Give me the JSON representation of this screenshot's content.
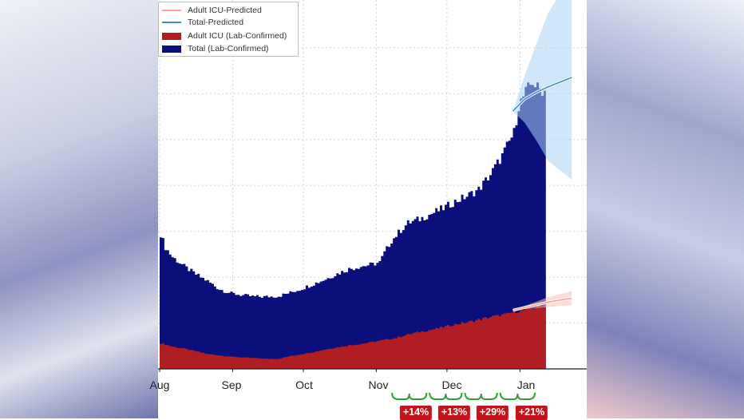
{
  "chart_data": {
    "type": "area",
    "ylabel": "",
    "xlabel": "",
    "x_start": "Aug 31",
    "x_end": "Jan 11",
    "grid": true,
    "legend_position": "top-left",
    "legend": [
      {
        "label": "Adult ICU-Predicted",
        "kind": "line",
        "color": "#f4a29a"
      },
      {
        "label": "Total-Predicted",
        "kind": "line",
        "color": "#3b8fd9"
      },
      {
        "label": "Adult ICU (Lab-Confirmed)",
        "kind": "box",
        "color": "#b01e23"
      },
      {
        "label": "Total (Lab-Confirmed)",
        "kind": "box",
        "color": "#0b0f7c"
      }
    ],
    "x_tick_labels": [
      {
        "label": "Aug",
        "day": 0
      },
      {
        "label": "Sep",
        "day": 31
      },
      {
        "label": "Oct",
        "day": 61
      },
      {
        "label": "Nov",
        "day": 92
      },
      {
        "label": "Dec",
        "day": 122
      },
      {
        "label": "Jan",
        "day": 153
      }
    ],
    "series": [
      {
        "name": "Total (Lab-Confirmed)",
        "type": "area",
        "color": "#0b0f7c",
        "points": [
          [
            0,
            1000
          ],
          [
            2,
            900
          ],
          [
            5,
            830
          ],
          [
            10,
            760
          ],
          [
            15,
            700
          ],
          [
            20,
            650
          ],
          [
            25,
            590
          ],
          [
            30,
            560
          ],
          [
            35,
            545
          ],
          [
            40,
            535
          ],
          [
            45,
            535
          ],
          [
            50,
            540
          ],
          [
            55,
            565
          ],
          [
            60,
            595
          ],
          [
            65,
            630
          ],
          [
            70,
            665
          ],
          [
            75,
            705
          ],
          [
            80,
            740
          ],
          [
            85,
            760
          ],
          [
            90,
            775
          ],
          [
            93,
            790
          ],
          [
            95,
            860
          ],
          [
            98,
            950
          ],
          [
            102,
            1030
          ],
          [
            105,
            1080
          ],
          [
            110,
            1110
          ],
          [
            115,
            1150
          ],
          [
            120,
            1190
          ],
          [
            125,
            1240
          ],
          [
            130,
            1280
          ],
          [
            135,
            1330
          ],
          [
            140,
            1440
          ],
          [
            145,
            1580
          ],
          [
            150,
            1750
          ],
          [
            152,
            1950
          ],
          [
            155,
            2050
          ],
          [
            158,
            2130
          ],
          [
            160,
            2080
          ],
          [
            163,
            2060
          ]
        ]
      },
      {
        "name": "Adult ICU (Lab-Confirmed)",
        "type": "area",
        "color": "#b01e23",
        "points": [
          [
            0,
            190
          ],
          [
            5,
            165
          ],
          [
            10,
            150
          ],
          [
            15,
            130
          ],
          [
            20,
            110
          ],
          [
            25,
            100
          ],
          [
            30,
            90
          ],
          [
            35,
            85
          ],
          [
            40,
            80
          ],
          [
            45,
            75
          ],
          [
            50,
            75
          ],
          [
            55,
            95
          ],
          [
            60,
            110
          ],
          [
            65,
            125
          ],
          [
            70,
            145
          ],
          [
            75,
            160
          ],
          [
            80,
            175
          ],
          [
            85,
            185
          ],
          [
            90,
            200
          ],
          [
            95,
            215
          ],
          [
            100,
            230
          ],
          [
            105,
            255
          ],
          [
            110,
            275
          ],
          [
            115,
            290
          ],
          [
            120,
            310
          ],
          [
            125,
            330
          ],
          [
            130,
            345
          ],
          [
            135,
            365
          ],
          [
            140,
            385
          ],
          [
            145,
            400
          ],
          [
            150,
            420
          ],
          [
            155,
            440
          ],
          [
            160,
            460
          ],
          [
            163,
            470
          ]
        ]
      },
      {
        "name": "Total-Predicted",
        "type": "line",
        "color": "#3b8fd9",
        "points": [
          [
            150,
            1910
          ],
          [
            155,
            2000
          ],
          [
            160,
            2050
          ],
          [
            165,
            2090
          ],
          [
            175,
            2160
          ]
        ]
      },
      {
        "name": "Adult ICU-Predicted",
        "type": "line",
        "color": "#f4a29a",
        "points": [
          [
            150,
            435
          ],
          [
            155,
            455
          ],
          [
            160,
            475
          ],
          [
            165,
            495
          ],
          [
            175,
            525
          ]
        ]
      }
    ],
    "ylim": [
      0,
      2700
    ],
    "xlim": [
      0,
      175
    ],
    "annotations": [
      {
        "text": "+14%",
        "from_day": 98,
        "to_day": 114
      },
      {
        "text": "+13%",
        "from_day": 114,
        "to_day": 129
      },
      {
        "text": "+29%",
        "from_day": 129,
        "to_day": 144
      },
      {
        "text": "+21%",
        "from_day": 144,
        "to_day": 160
      }
    ]
  }
}
